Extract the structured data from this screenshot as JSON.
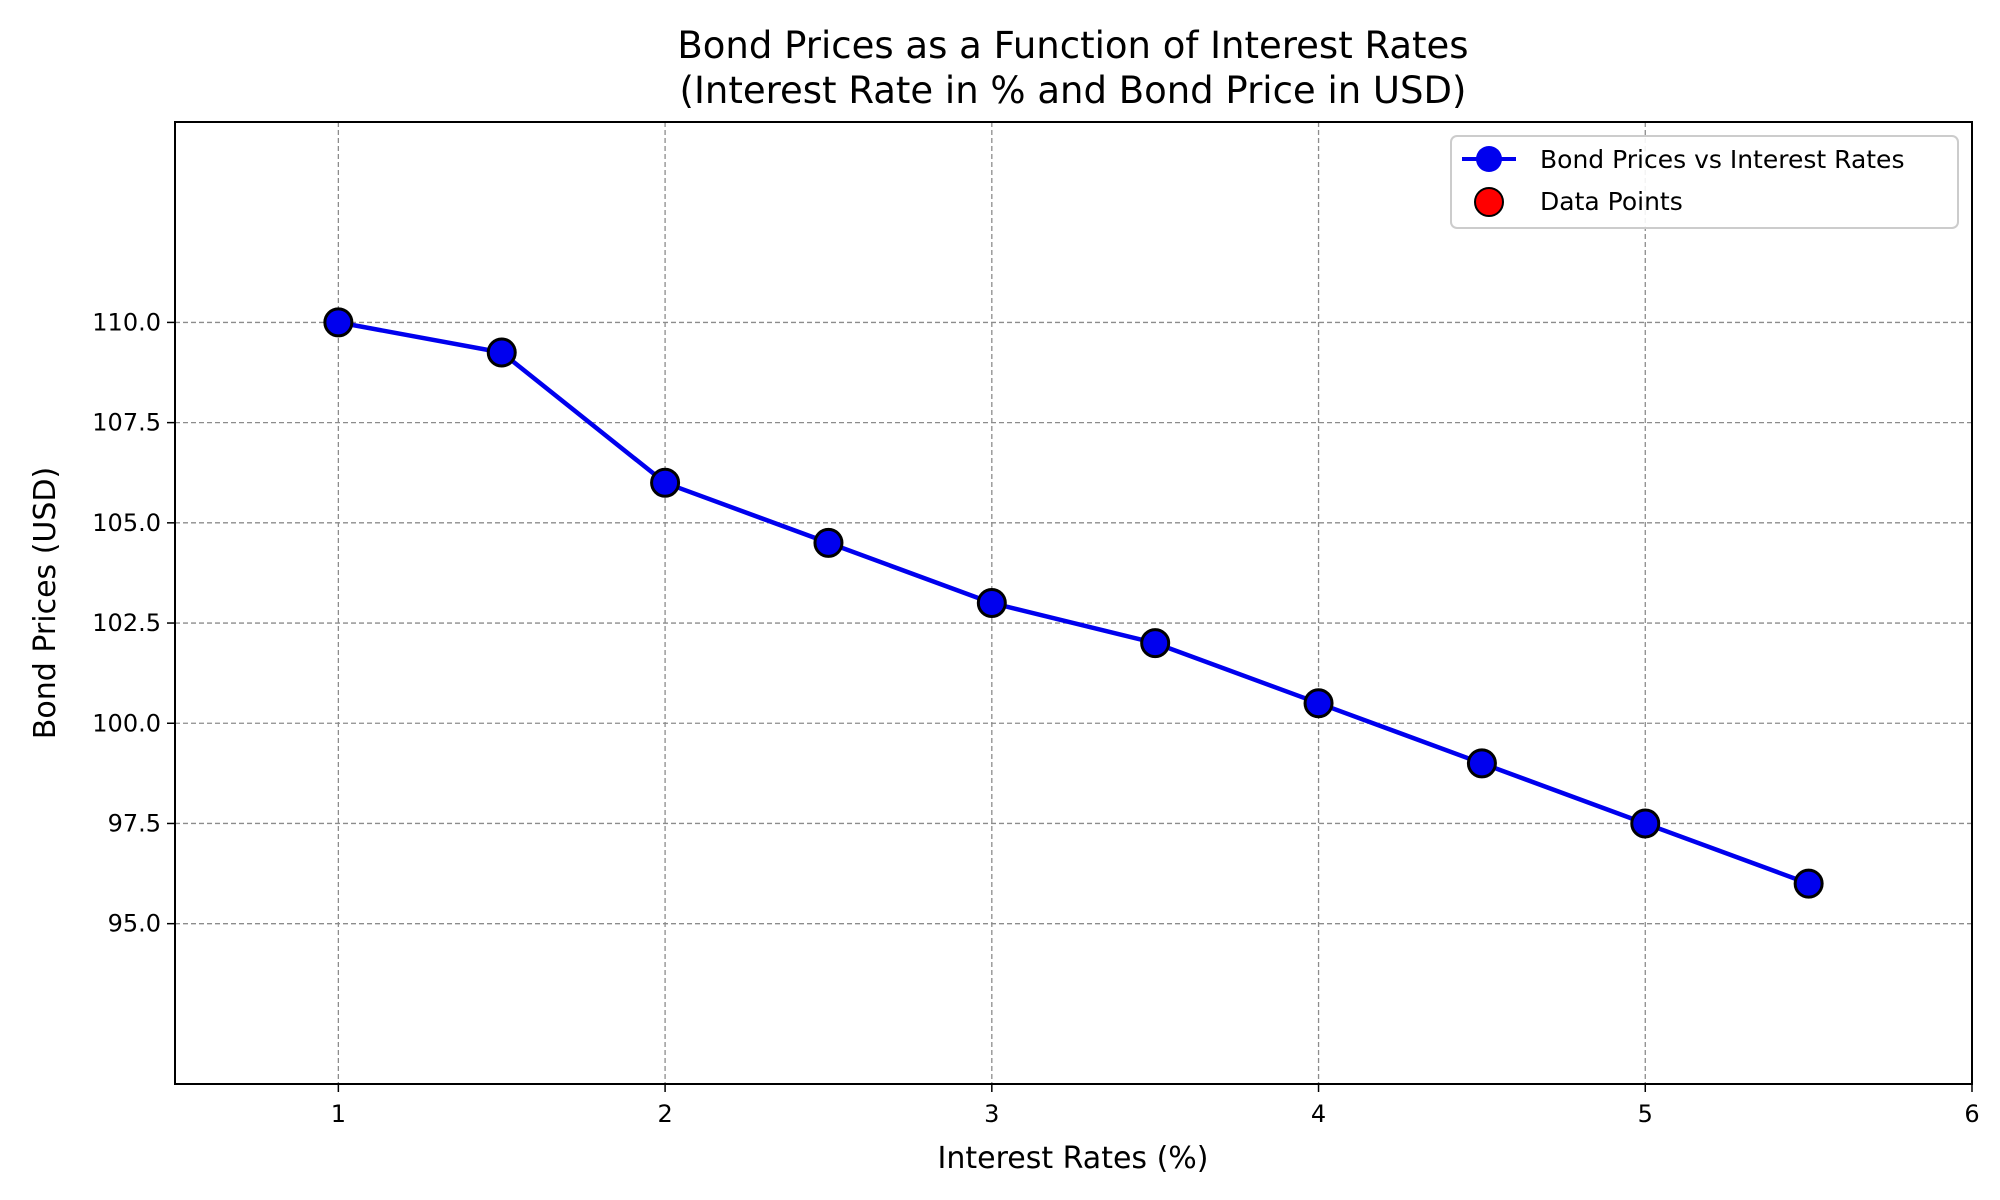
{
  "chart_data": {
    "type": "line",
    "title": "Bond Prices as a Function of Interest Rates",
    "subtitle": "(Interest Rate in % and Bond Price in USD)",
    "xlabel": "Interest Rates (%)",
    "ylabel": "Bond Prices (USD)",
    "xlim": [
      0.5,
      6
    ],
    "ylim": [
      91,
      115
    ],
    "x_ticks": [
      "1",
      "2",
      "3",
      "4",
      "5",
      "6"
    ],
    "x_tick_values": [
      1,
      2,
      3,
      4,
      5,
      6
    ],
    "y_ticks": [
      "95.0",
      "97.5",
      "100.0",
      "102.5",
      "105.0",
      "107.5",
      "110.0"
    ],
    "y_tick_values": [
      95,
      97.5,
      100,
      102.5,
      105,
      107.5,
      110
    ],
    "grid": true,
    "legend_position": "top-right",
    "x": [
      1,
      1.5,
      2,
      2.5,
      3,
      3.5,
      4,
      4.5,
      5,
      5.5
    ],
    "series": [
      {
        "name": "Bond Prices vs Interest Rates",
        "style": "line-with-markers",
        "color": "#0000ee",
        "values": [
          110,
          109.25,
          106,
          104.5,
          103,
          102,
          100.5,
          99,
          97.5,
          96
        ]
      },
      {
        "name": "Data Points",
        "style": "scatter",
        "color": "#ff0000",
        "values": [
          110,
          109.25,
          106,
          104.5,
          103,
          102,
          100.5,
          99,
          97.5,
          96
        ]
      }
    ]
  }
}
